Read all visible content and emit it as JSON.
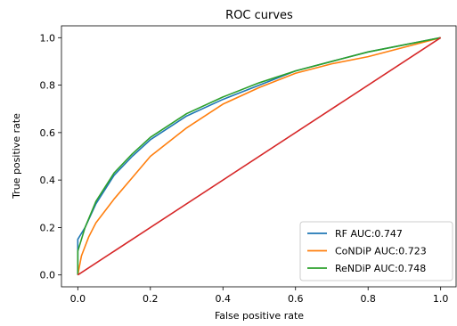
{
  "chart_data": {
    "type": "line",
    "title": "ROC curves",
    "xlabel": "False positive rate",
    "ylabel": "True positive rate",
    "xlim": [
      -0.045,
      1.045
    ],
    "ylim": [
      -0.05,
      1.05
    ],
    "xticks": [
      0.0,
      0.2,
      0.4,
      0.6,
      0.8,
      1.0
    ],
    "yticks": [
      0.0,
      0.2,
      0.4,
      0.6,
      0.8,
      1.0
    ],
    "xtick_labels": [
      "0.0",
      "0.2",
      "0.4",
      "0.6",
      "0.8",
      "1.0"
    ],
    "ytick_labels": [
      "0.0",
      "0.2",
      "0.4",
      "0.6",
      "0.8",
      "1.0"
    ],
    "grid": false,
    "legend_position": "lower-right",
    "series": [
      {
        "name": "RF AUC:0.747",
        "color": "#1f77b4",
        "x": [
          0.0,
          0.0,
          0.02,
          0.05,
          0.1,
          0.15,
          0.2,
          0.3,
          0.4,
          0.5,
          0.6,
          0.7,
          0.8,
          0.9,
          1.0
        ],
        "y": [
          0.0,
          0.15,
          0.2,
          0.3,
          0.42,
          0.5,
          0.57,
          0.67,
          0.74,
          0.8,
          0.86,
          0.9,
          0.94,
          0.97,
          1.0
        ]
      },
      {
        "name": "CoNDiP AUC:0.723",
        "color": "#ff7f0e",
        "x": [
          0.0,
          0.01,
          0.03,
          0.05,
          0.1,
          0.15,
          0.2,
          0.3,
          0.4,
          0.5,
          0.6,
          0.7,
          0.8,
          0.9,
          1.0
        ],
        "y": [
          0.0,
          0.08,
          0.16,
          0.22,
          0.32,
          0.41,
          0.5,
          0.62,
          0.72,
          0.79,
          0.85,
          0.89,
          0.92,
          0.96,
          1.0
        ]
      },
      {
        "name": "ReNDiP AUC:0.748",
        "color": "#2ca02c",
        "x": [
          0.0,
          0.0,
          0.02,
          0.05,
          0.1,
          0.15,
          0.2,
          0.3,
          0.4,
          0.5,
          0.6,
          0.7,
          0.8,
          0.9,
          1.0
        ],
        "y": [
          0.0,
          0.1,
          0.2,
          0.31,
          0.43,
          0.51,
          0.58,
          0.68,
          0.75,
          0.81,
          0.86,
          0.9,
          0.94,
          0.97,
          1.0
        ]
      },
      {
        "name": "",
        "color": "#d62728",
        "x": [
          0.0,
          1.0
        ],
        "y": [
          0.0,
          1.0
        ]
      }
    ]
  }
}
